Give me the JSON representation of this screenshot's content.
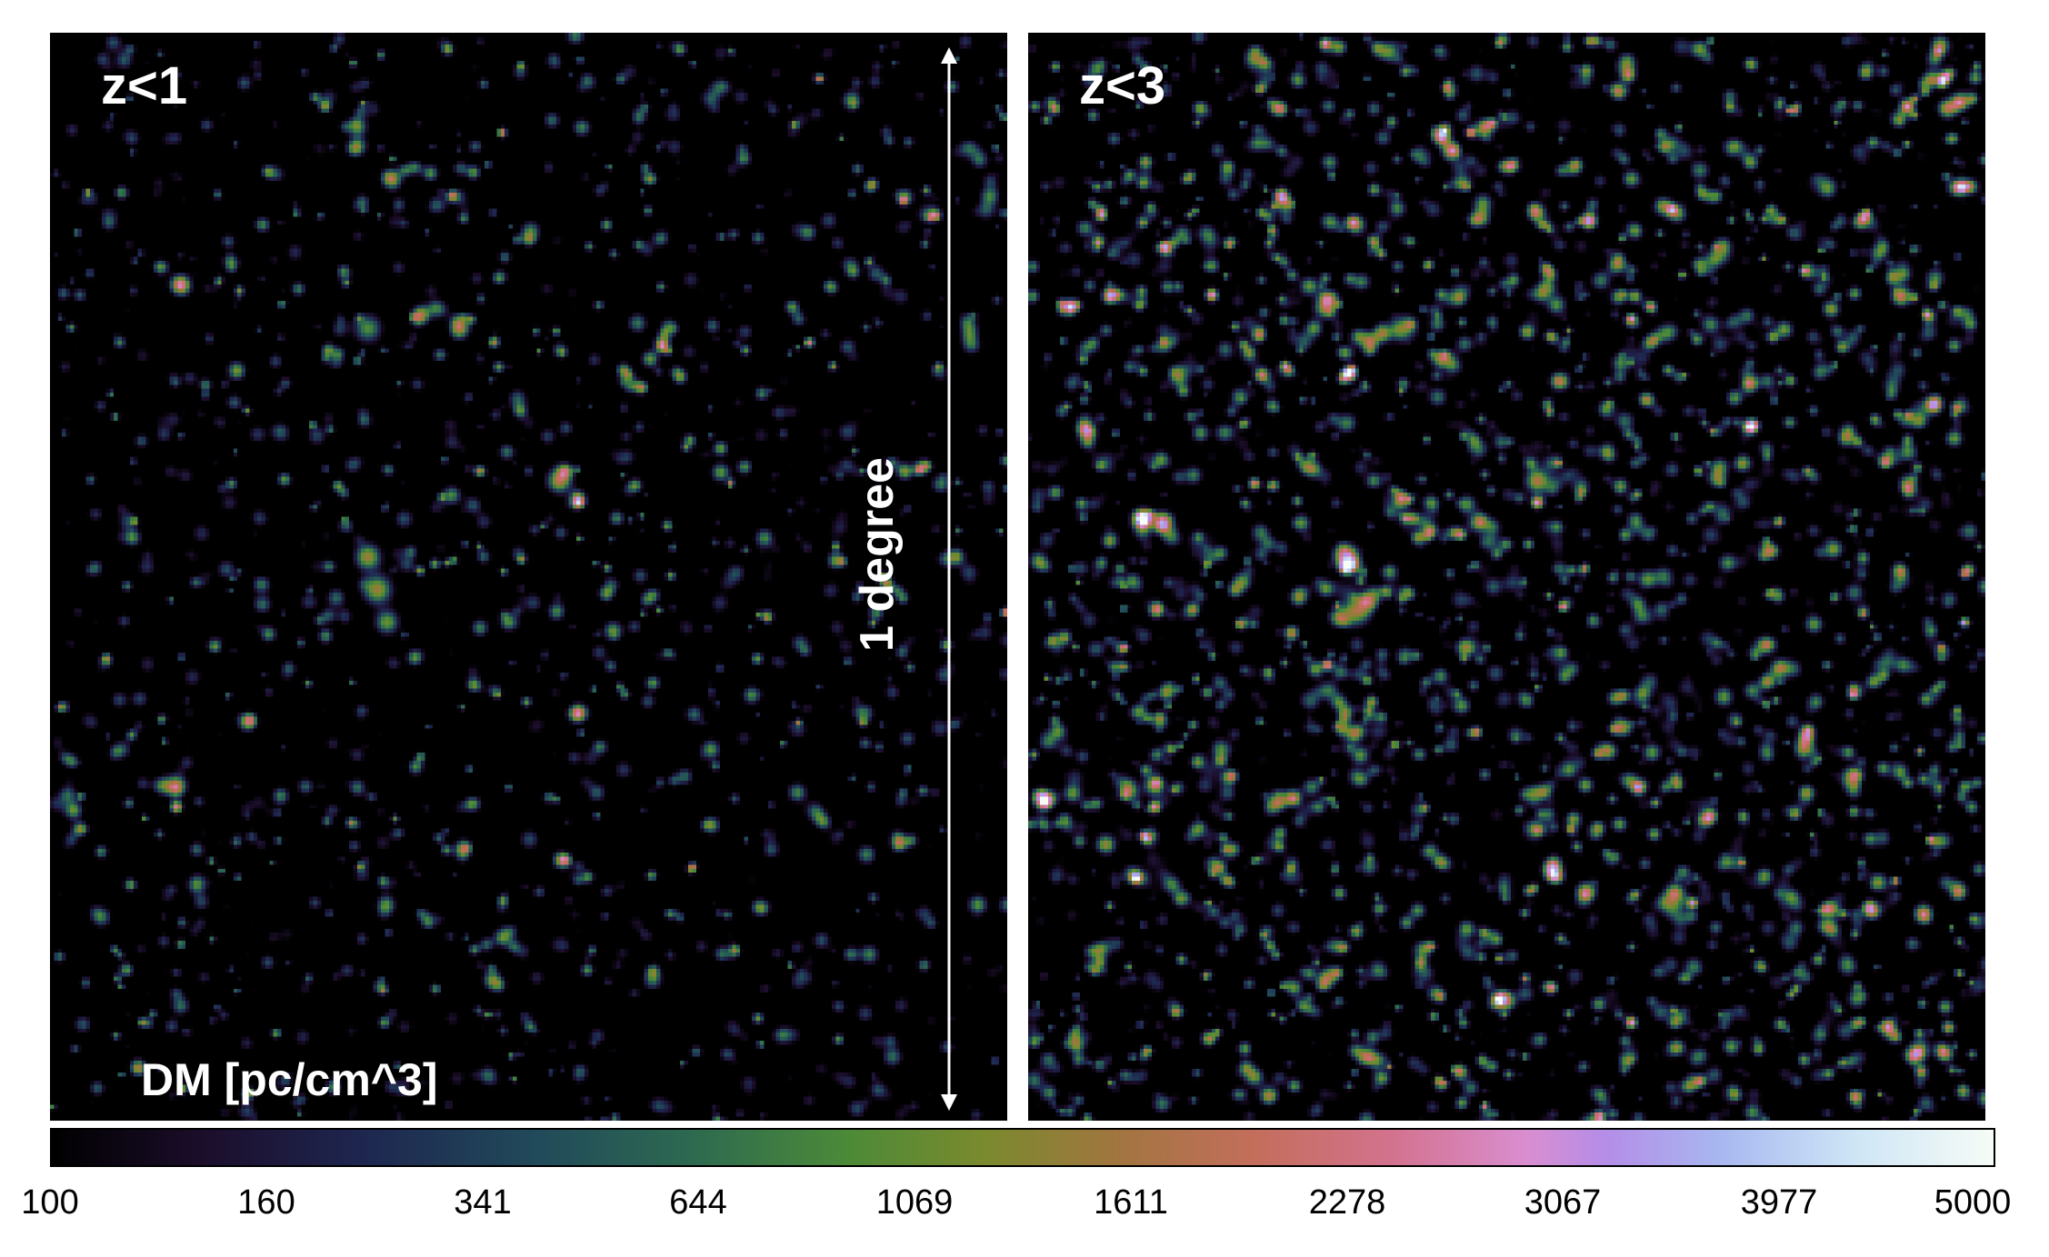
{
  "panels": [
    {
      "label": "z<1"
    },
    {
      "label": "z<3"
    }
  ],
  "annotations": {
    "scale_bar": "1 degree",
    "colorbar_title": "DM [pc/cm^3]"
  },
  "colorbar": {
    "ticks": [
      "100",
      "160",
      "341",
      "644",
      "1069",
      "1611",
      "2278",
      "3067",
      "3977",
      "5000"
    ],
    "min": 100,
    "max": 5000
  },
  "colors": {
    "background": "#000000",
    "text_on_image": "#ffffff",
    "colormap_stops": [
      "#000000",
      "#1c0e2c",
      "#1e2650",
      "#214a5a",
      "#2d6a50",
      "#4c8a38",
      "#7a8a2e",
      "#a27540",
      "#c46e5c",
      "#d3728e",
      "#d98ed0",
      "#b48de8",
      "#a8b8f0",
      "#cfe6f6",
      "#f6fcf6"
    ]
  }
}
